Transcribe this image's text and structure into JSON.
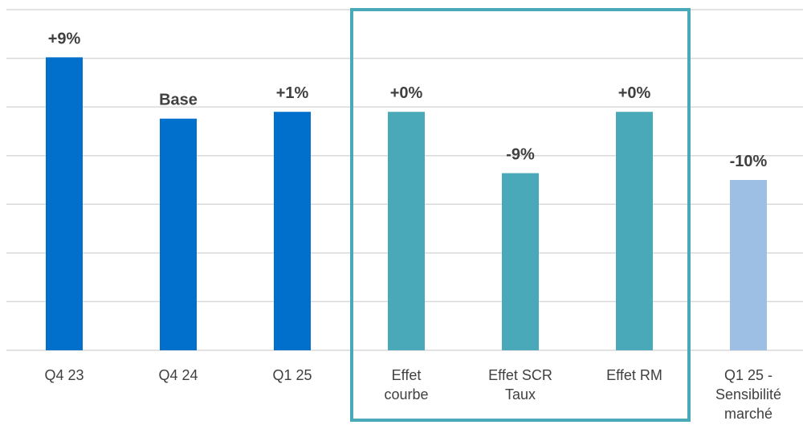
{
  "chart_data": {
    "type": "bar",
    "categories": [
      [
        "Q4 23"
      ],
      [
        "Q4 24"
      ],
      [
        "Q1 25"
      ],
      [
        "Effet",
        "courbe"
      ],
      [
        "Effet SCR",
        "Taux"
      ],
      [
        "Effet RM"
      ],
      [
        "Q1 25 -",
        "Sensibilité",
        "marché"
      ]
    ],
    "values": [
      109,
      100,
      101,
      101,
      92,
      101,
      91
    ],
    "data_labels": [
      "+9%",
      "Base",
      "+1%",
      "+0%",
      "-9%",
      "+0%",
      "-10%"
    ],
    "colors": [
      "#0070cc",
      "#0070cc",
      "#0070cc",
      "#4aa9b9",
      "#4aa9b9",
      "#4aa9b9",
      "#9dbfe3"
    ],
    "ylim": [
      66,
      116
    ],
    "grid": true,
    "highlight_box": {
      "category_range": [
        3,
        5
      ],
      "color": "#4aa9b9"
    },
    "title": "",
    "xlabel": "",
    "ylabel": ""
  }
}
